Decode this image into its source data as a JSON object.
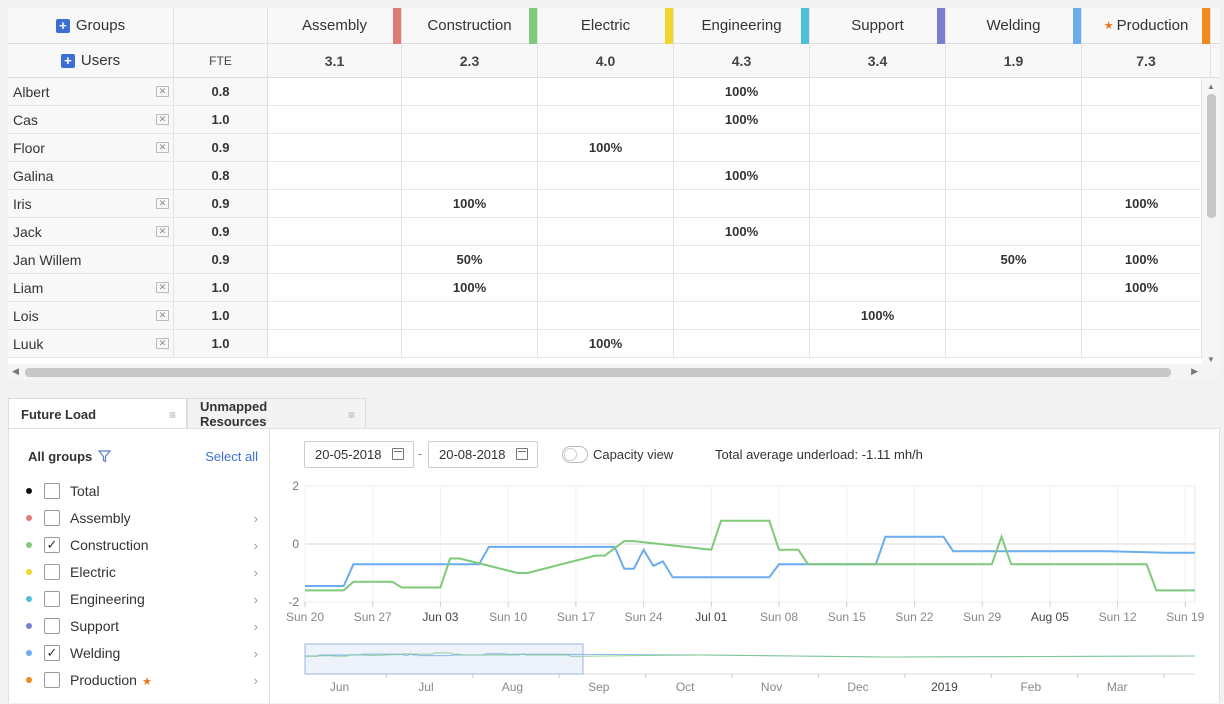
{
  "grid": {
    "groups_label": "Groups",
    "users_label": "Users",
    "fte_label": "FTE",
    "columns": [
      {
        "name": "Assembly",
        "sum": "3.1",
        "color": "#e07a74",
        "starred": false
      },
      {
        "name": "Construction",
        "sum": "2.3",
        "color": "#7ec97a",
        "starred": false
      },
      {
        "name": "Electric",
        "sum": "4.0",
        "color": "#f2d42c",
        "starred": false
      },
      {
        "name": "Engineering",
        "sum": "4.3",
        "color": "#4fc0d8",
        "starred": false
      },
      {
        "name": "Support",
        "sum": "3.4",
        "color": "#7a7fcf",
        "starred": false
      },
      {
        "name": "Welding",
        "sum": "1.9",
        "color": "#6aacef",
        "starred": false
      },
      {
        "name": "Production",
        "sum": "7.3",
        "color": "#f28b1e",
        "starred": true
      }
    ],
    "rows": [
      {
        "name": "Albert",
        "remove": true,
        "fte": "0.8",
        "cells": [
          "",
          "",
          "",
          "100%",
          "",
          "",
          ""
        ]
      },
      {
        "name": "Cas",
        "remove": true,
        "fte": "1.0",
        "cells": [
          "",
          "",
          "",
          "100%",
          "",
          "",
          ""
        ]
      },
      {
        "name": "Floor",
        "remove": true,
        "fte": "0.9",
        "cells": [
          "",
          "",
          "100%",
          "",
          "",
          "",
          ""
        ]
      },
      {
        "name": "Galina",
        "remove": false,
        "fte": "0.8",
        "cells": [
          "",
          "",
          "",
          "100%",
          "",
          "",
          ""
        ]
      },
      {
        "name": "Iris",
        "remove": true,
        "fte": "0.9",
        "cells": [
          "",
          "100%",
          "",
          "",
          "",
          "",
          "100%"
        ]
      },
      {
        "name": "Jack",
        "remove": true,
        "fte": "0.9",
        "cells": [
          "",
          "",
          "",
          "100%",
          "",
          "",
          ""
        ]
      },
      {
        "name": "Jan Willem",
        "remove": false,
        "fte": "0.9",
        "cells": [
          "",
          "50%",
          "",
          "",
          "",
          "50%",
          "100%"
        ]
      },
      {
        "name": "Liam",
        "remove": true,
        "fte": "1.0",
        "cells": [
          "",
          "100%",
          "",
          "",
          "",
          "",
          "100%"
        ]
      },
      {
        "name": "Lois",
        "remove": true,
        "fte": "1.0",
        "cells": [
          "",
          "",
          "",
          "",
          "100%",
          "",
          ""
        ]
      },
      {
        "name": "Luuk",
        "remove": true,
        "fte": "1.0",
        "cells": [
          "",
          "",
          "100%",
          "",
          "",
          "",
          ""
        ]
      }
    ]
  },
  "tabs": [
    {
      "label": "Future Load",
      "active": true
    },
    {
      "label": "Unmapped Resources",
      "active": false
    }
  ],
  "legend": {
    "title": "All groups",
    "select_all": "Select all",
    "items": [
      {
        "label": "Total",
        "color": "#111111",
        "checked": false,
        "chevron": false,
        "star": false
      },
      {
        "label": "Assembly",
        "color": "#e07a74",
        "checked": false,
        "chevron": true,
        "star": false
      },
      {
        "label": "Construction",
        "color": "#7ec97a",
        "checked": true,
        "chevron": true,
        "star": false
      },
      {
        "label": "Electric",
        "color": "#f2d42c",
        "checked": false,
        "chevron": true,
        "star": false
      },
      {
        "label": "Engineering",
        "color": "#4fc0d8",
        "checked": false,
        "chevron": true,
        "star": false
      },
      {
        "label": "Support",
        "color": "#7a7fcf",
        "checked": false,
        "chevron": true,
        "star": false
      },
      {
        "label": "Welding",
        "color": "#6aacef",
        "checked": true,
        "chevron": true,
        "star": false
      },
      {
        "label": "Production",
        "color": "#f28b1e",
        "checked": false,
        "chevron": true,
        "star": true
      }
    ]
  },
  "controls": {
    "date_from": "20-05-2018",
    "date_to": "20-08-2018",
    "date_separator": "-",
    "capacity_label": "Capacity view",
    "capacity_on": false,
    "underload_text": "Total average underload: -1.11 mh/h"
  },
  "chart_data": {
    "type": "line",
    "ylim": [
      -2,
      2
    ],
    "yticks": [
      2,
      0,
      -2
    ],
    "x_start": "2018-05-20",
    "x_end": "2018-08-20",
    "xticks": [
      {
        "label": "Sun 20",
        "major": false
      },
      {
        "label": "Sun 27",
        "major": false
      },
      {
        "label": "Jun 03",
        "major": true
      },
      {
        "label": "Sun 10",
        "major": false
      },
      {
        "label": "Sun 17",
        "major": false
      },
      {
        "label": "Sun 24",
        "major": false
      },
      {
        "label": "Jul 01",
        "major": true
      },
      {
        "label": "Sun 08",
        "major": false
      },
      {
        "label": "Sun 15",
        "major": false
      },
      {
        "label": "Sun 22",
        "major": false
      },
      {
        "label": "Sun 29",
        "major": false
      },
      {
        "label": "Aug 05",
        "major": true
      },
      {
        "label": "Sun 12",
        "major": false
      },
      {
        "label": "Sun 19",
        "major": false
      }
    ],
    "series": [
      {
        "name": "Welding",
        "color": "#6aacef",
        "x": [
          "2018-05-20",
          "2018-05-24",
          "2018-05-25",
          "2018-06-07",
          "2018-06-08",
          "2018-06-21",
          "2018-06-22",
          "2018-06-23",
          "2018-06-24",
          "2018-06-25",
          "2018-06-26",
          "2018-06-27",
          "2018-07-07",
          "2018-07-08",
          "2018-07-18",
          "2018-07-19",
          "2018-07-25",
          "2018-07-26",
          "2018-08-11",
          "2018-08-17",
          "2018-08-20"
        ],
        "y": [
          -1.45,
          -1.45,
          -0.7,
          -0.7,
          -0.1,
          -0.1,
          -0.85,
          -0.85,
          -0.2,
          -0.75,
          -0.6,
          -1.15,
          -1.15,
          -0.7,
          -0.7,
          0.25,
          0.25,
          -0.25,
          -0.25,
          -0.3,
          -0.3
        ]
      },
      {
        "name": "Construction",
        "color": "#7ec97a",
        "x": [
          "2018-05-20",
          "2018-05-24",
          "2018-05-25",
          "2018-05-29",
          "2018-05-30",
          "2018-06-02",
          "2018-06-03",
          "2018-06-04",
          "2018-06-05",
          "2018-06-11",
          "2018-06-12",
          "2018-06-19",
          "2018-06-20",
          "2018-06-22",
          "2018-06-23",
          "2018-07-01",
          "2018-07-02",
          "2018-07-07",
          "2018-07-08",
          "2018-07-10",
          "2018-07-11",
          "2018-07-30",
          "2018-07-31",
          "2018-08-01",
          "2018-08-15",
          "2018-08-16",
          "2018-08-20"
        ],
        "y": [
          -1.6,
          -1.6,
          -1.3,
          -1.3,
          -1.5,
          -1.5,
          -1.5,
          -0.5,
          -0.5,
          -1.0,
          -1.0,
          -0.4,
          -0.4,
          0.1,
          0.1,
          -0.2,
          0.8,
          0.8,
          -0.2,
          -0.2,
          -0.7,
          -0.7,
          0.25,
          -0.7,
          -0.7,
          -1.6,
          -1.6
        ]
      }
    ],
    "navigator": {
      "xticks": [
        {
          "label": "Jun",
          "major": false
        },
        {
          "label": "Jul",
          "major": false
        },
        {
          "label": "Aug",
          "major": false
        },
        {
          "label": "Sep",
          "major": false
        },
        {
          "label": "Oct",
          "major": false
        },
        {
          "label": "Nov",
          "major": false
        },
        {
          "label": "Dec",
          "major": false
        },
        {
          "label": "2019",
          "major": true
        },
        {
          "label": "Feb",
          "major": false
        },
        {
          "label": "Mar",
          "major": false
        }
      ]
    }
  }
}
